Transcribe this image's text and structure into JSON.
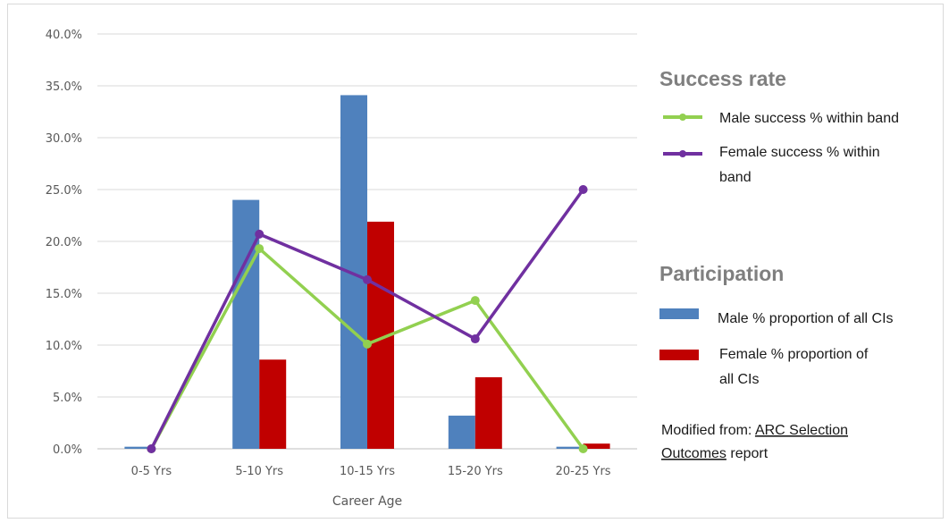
{
  "chart_data": {
    "type": "bar",
    "categories": [
      "0-5 Yrs",
      "5-10 Yrs",
      "10-15 Yrs",
      "15-20 Yrs",
      "20-25 Yrs"
    ],
    "xlabel": "Career Age",
    "ylim": [
      0,
      40
    ],
    "y_ticks": [
      "0.0%",
      "5.0%",
      "10.0%",
      "15.0%",
      "20.0%",
      "25.0%",
      "30.0%",
      "35.0%",
      "40.0%"
    ],
    "grid": true,
    "series": [
      {
        "name": "Male % proportion of all CIs",
        "kind": "bar",
        "color": "#4f81bd",
        "values": [
          0.2,
          24.0,
          34.1,
          3.2,
          0.2
        ]
      },
      {
        "name": "Female % proportion of all CIs",
        "kind": "bar",
        "color": "#c00000",
        "values": [
          0.0,
          8.6,
          21.9,
          6.9,
          0.5
        ]
      },
      {
        "name": "Male success % within band",
        "kind": "line",
        "color": "#92d050",
        "values": [
          0.0,
          19.3,
          10.1,
          14.3,
          0.0
        ]
      },
      {
        "name": "Female success % within band",
        "kind": "line",
        "color": "#7030a0",
        "values": [
          0.0,
          20.7,
          16.3,
          10.6,
          25.0
        ]
      }
    ]
  },
  "legend": {
    "success_title": "Success rate",
    "male_success_lines": [
      "Male success % within band"
    ],
    "female_success_lines": [
      "Female success % within",
      "band"
    ],
    "participation_title": "Participation",
    "male_participation_lines": [
      "Male % proportion of all CIs"
    ],
    "female_participation_lines": [
      "Female % proportion of",
      "all CIs"
    ]
  },
  "source_note": {
    "prefix": "Modified from: ",
    "link_line1": "ARC Selection",
    "link_line2": "Outcomes",
    "suffix": " report"
  }
}
